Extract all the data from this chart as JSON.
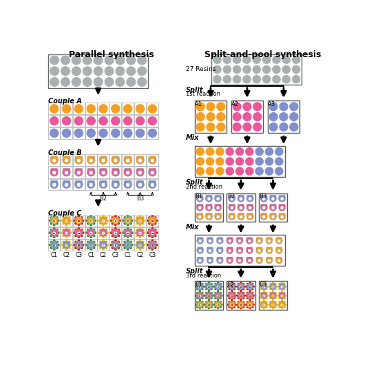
{
  "title_left": "Parallel synthesis",
  "title_right": "Split-and-pool synthesis",
  "title_fontsize": 9,
  "bg_color": "#ffffff",
  "gray_color": "#A8B0B0",
  "orange_color": "#F5A020",
  "pink_color": "#E8589A",
  "blue_color": "#8090CC",
  "green_color": "#3A8C3A",
  "yellow_color": "#E8C020",
  "red_color": "#CC2200",
  "text_27resins": "27 Resins",
  "text_split1": "Split",
  "text_1streaction": "1st reaction",
  "text_mix1": "Mix",
  "text_split2": "Split",
  "text_2ndreaction": "2nd reaction",
  "text_mix2": "Mix",
  "text_split3": "Split",
  "text_3rdreaction": "3rd reaction",
  "text_coupleA": "Couple A",
  "text_coupleB": "Couple B",
  "text_coupleC": "Couple C"
}
